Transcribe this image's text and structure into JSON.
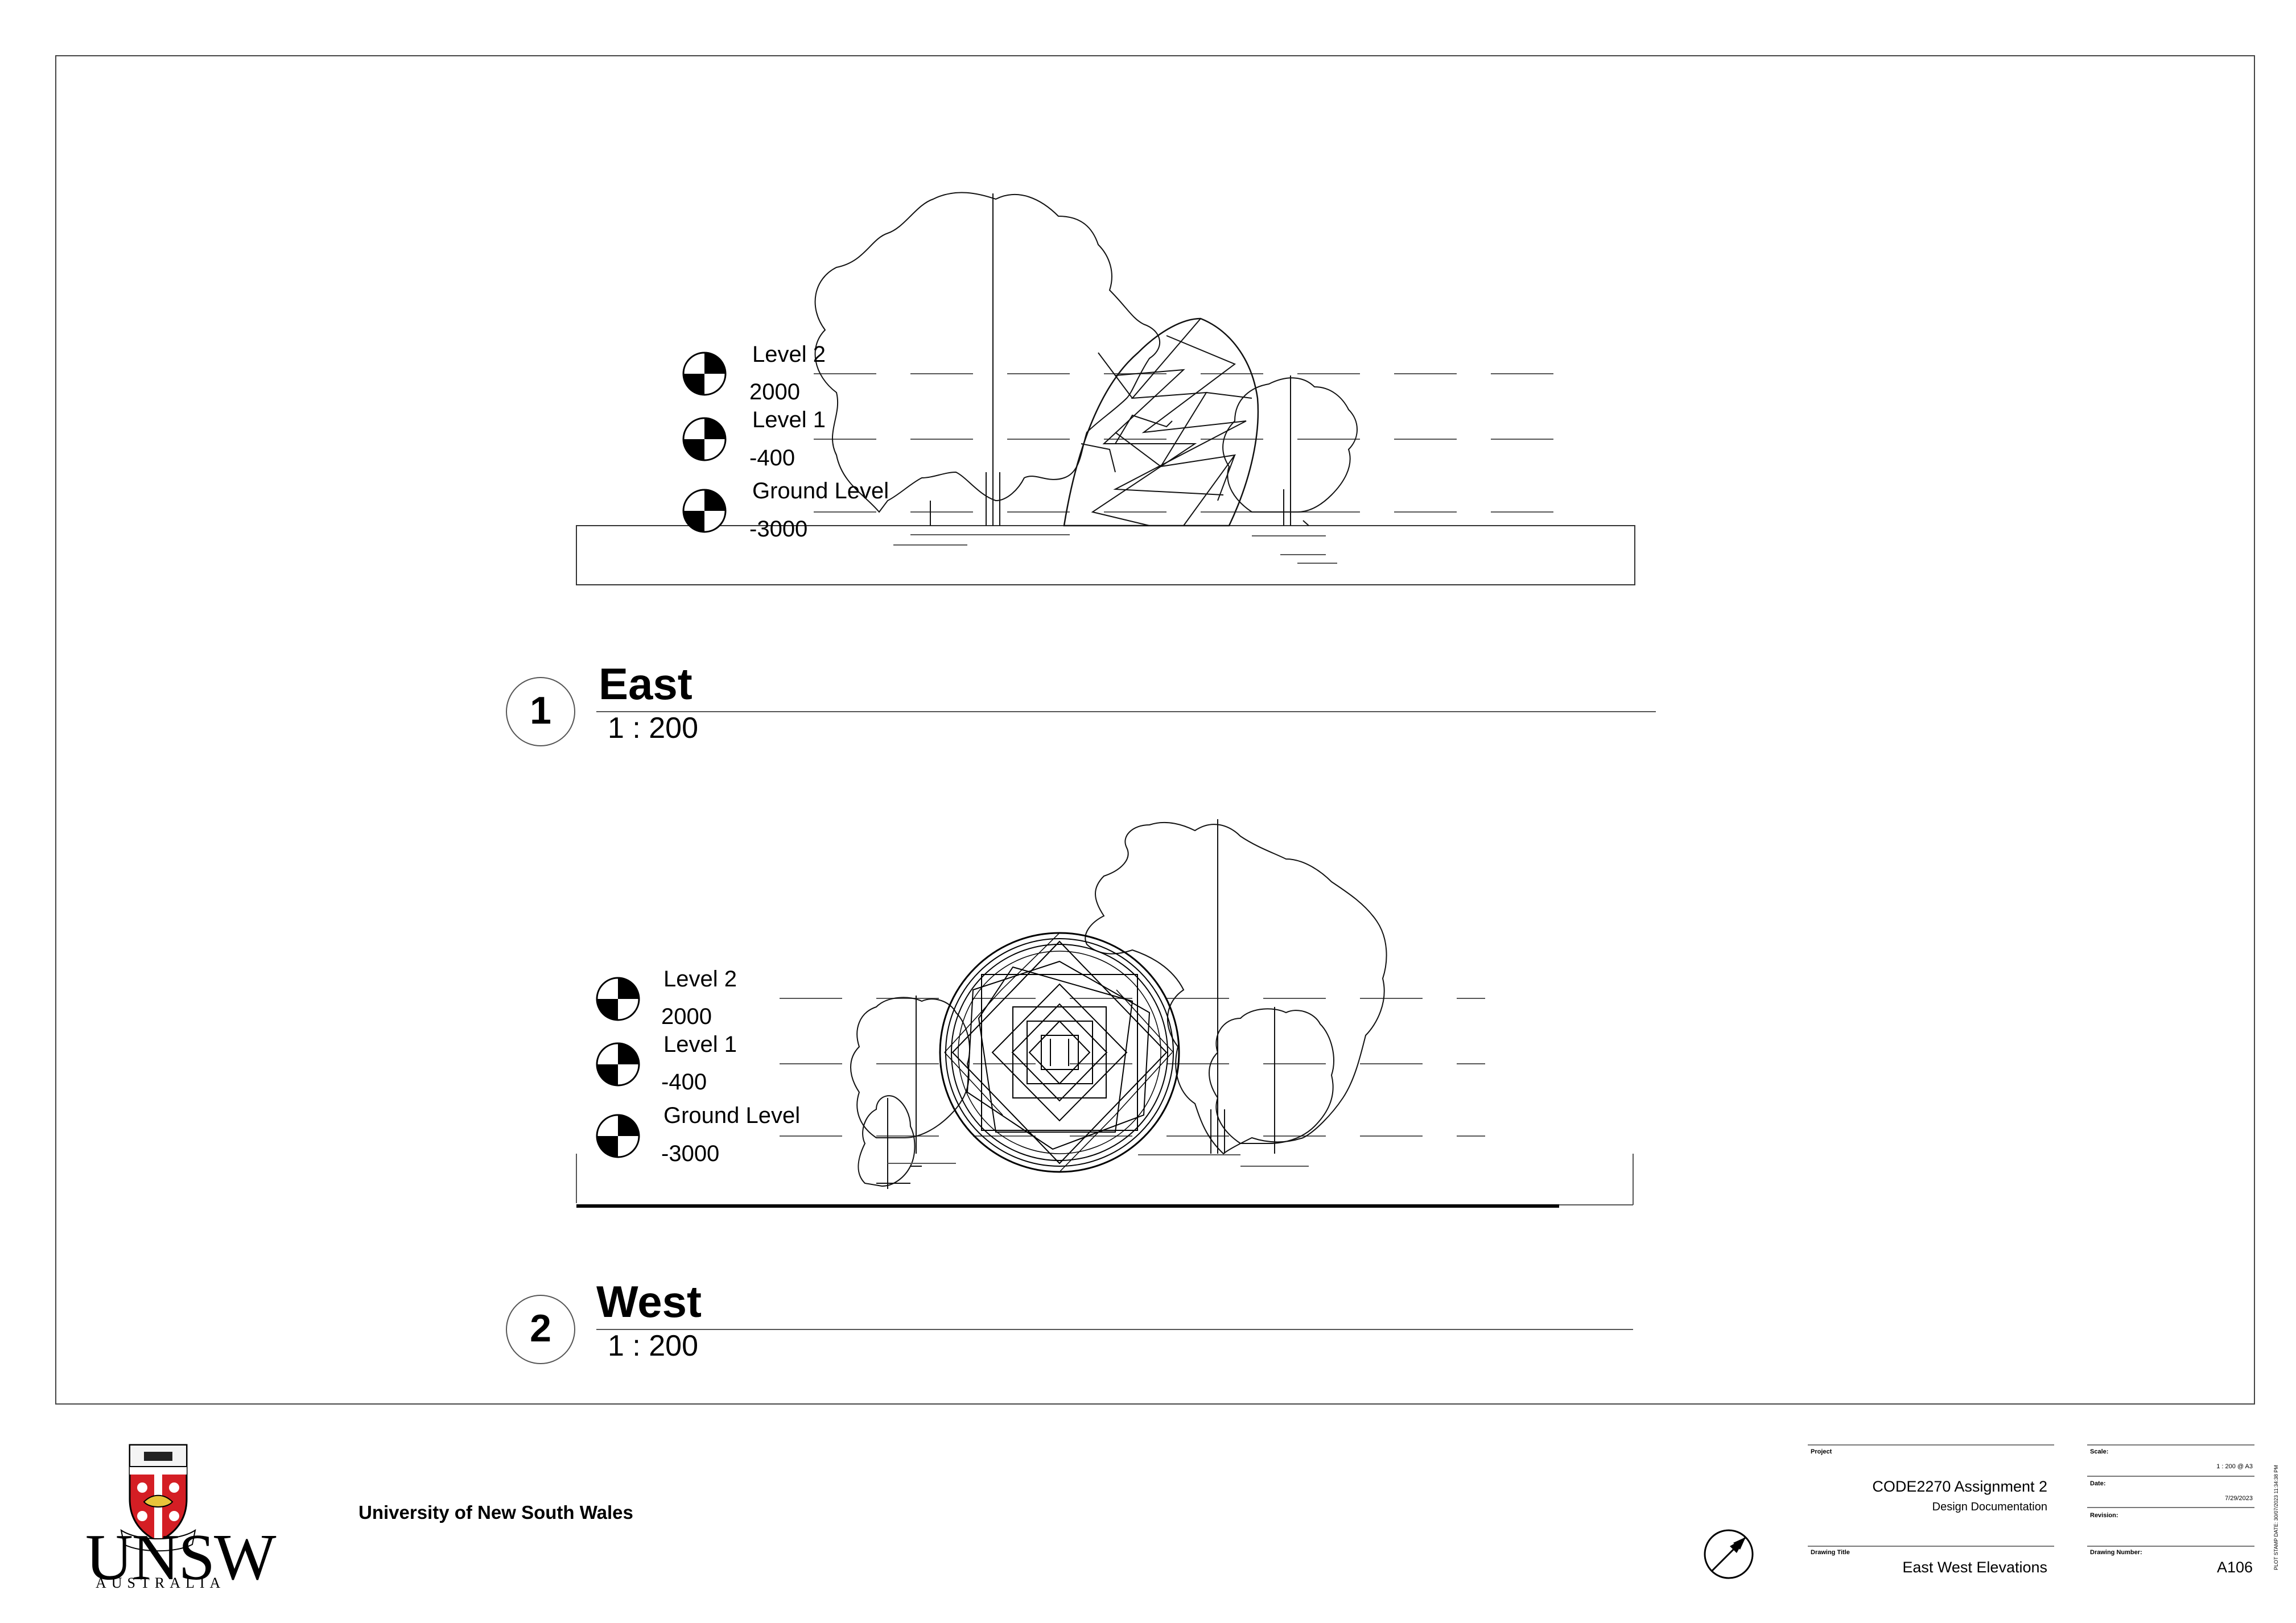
{
  "sheet": {
    "university": "University of New South Wales",
    "logo": {
      "word": "UNSW",
      "sub": "AUSTRALIA",
      "motto": "SCIENTIA MANU ET MENTE",
      "icon": "unsw-crest-icon"
    },
    "north_arrow": "north-arrow-icon"
  },
  "views": [
    {
      "number": "1",
      "title": "East",
      "scale": "1 : 200",
      "levels": [
        {
          "name": "Level 2",
          "elevation": "2000"
        },
        {
          "name": "Level 1",
          "elevation": "-400"
        },
        {
          "name": "Ground Level",
          "elevation": "-3000"
        }
      ]
    },
    {
      "number": "2",
      "title": "West",
      "scale": "1 : 200",
      "levels": [
        {
          "name": "Level 2",
          "elevation": "2000"
        },
        {
          "name": "Level 1",
          "elevation": "-400"
        },
        {
          "name": "Ground Level",
          "elevation": "-3000"
        }
      ]
    }
  ],
  "title_block": {
    "project_caption": "Project",
    "project": "CODE2270 Assignment 2",
    "project_sub": "Design Documentation",
    "drawing_title_caption": "Drawing Title",
    "drawing_title": "East West Elevations",
    "scale_caption": "Scale:",
    "scale": "1 : 200 @ A3",
    "date_caption": "Date:",
    "date": "7/29/2023",
    "revision_caption": "Revision:",
    "revision": "",
    "drawing_number_caption": "Drawing Number:",
    "drawing_number": "A106"
  },
  "plot_stamp": "PLOT STAMP DATE: 30/07/2023 11:34:38 PM"
}
